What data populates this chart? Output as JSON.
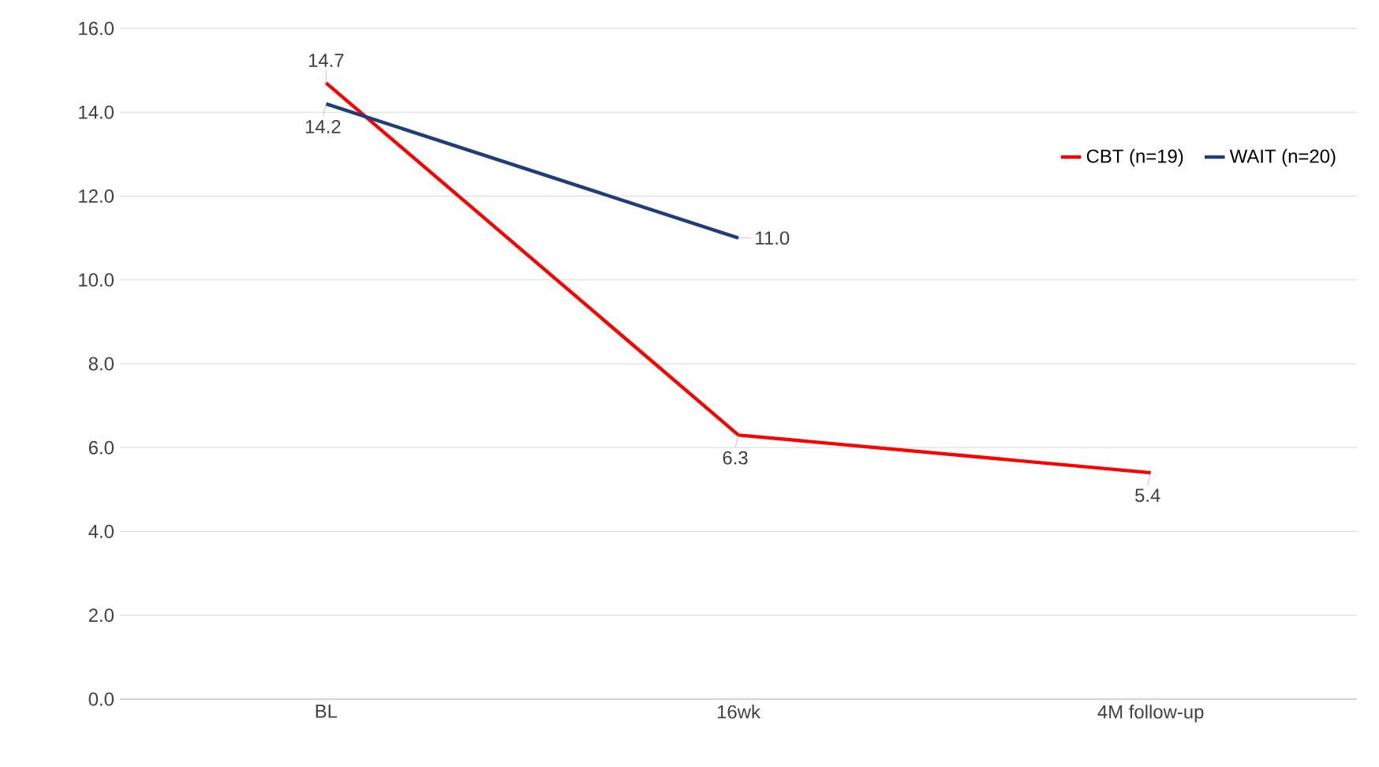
{
  "chart_data": {
    "type": "line",
    "categories": [
      "BL",
      "16wk",
      "4M follow-up"
    ],
    "series": [
      {
        "name": "CBT (n=19)",
        "color": "#ff0000",
        "values": [
          14.7,
          6.3,
          5.4
        ],
        "value_labels": [
          "14.7",
          "6.3",
          "5.4"
        ]
      },
      {
        "name": "WAIT (n=20)",
        "color": "#1f3d7a",
        "values": [
          14.2,
          11.0,
          null
        ],
        "value_labels": [
          "14.2",
          "11.0",
          null
        ]
      }
    ],
    "ylim": [
      0,
      16
    ],
    "yticks": [
      {
        "value": 0,
        "label": "0.0"
      },
      {
        "value": 2,
        "label": "2.0"
      },
      {
        "value": 4,
        "label": "4.0"
      },
      {
        "value": 6,
        "label": "6.0"
      },
      {
        "value": 8,
        "label": "8.0"
      },
      {
        "value": 10,
        "label": "10.0"
      },
      {
        "value": 12,
        "label": "12.0"
      },
      {
        "value": 14,
        "label": "14.0"
      },
      {
        "value": 16,
        "label": "16.0"
      }
    ],
    "grid": "y",
    "legend": "top right",
    "marker": "none",
    "line_style": "solid"
  }
}
